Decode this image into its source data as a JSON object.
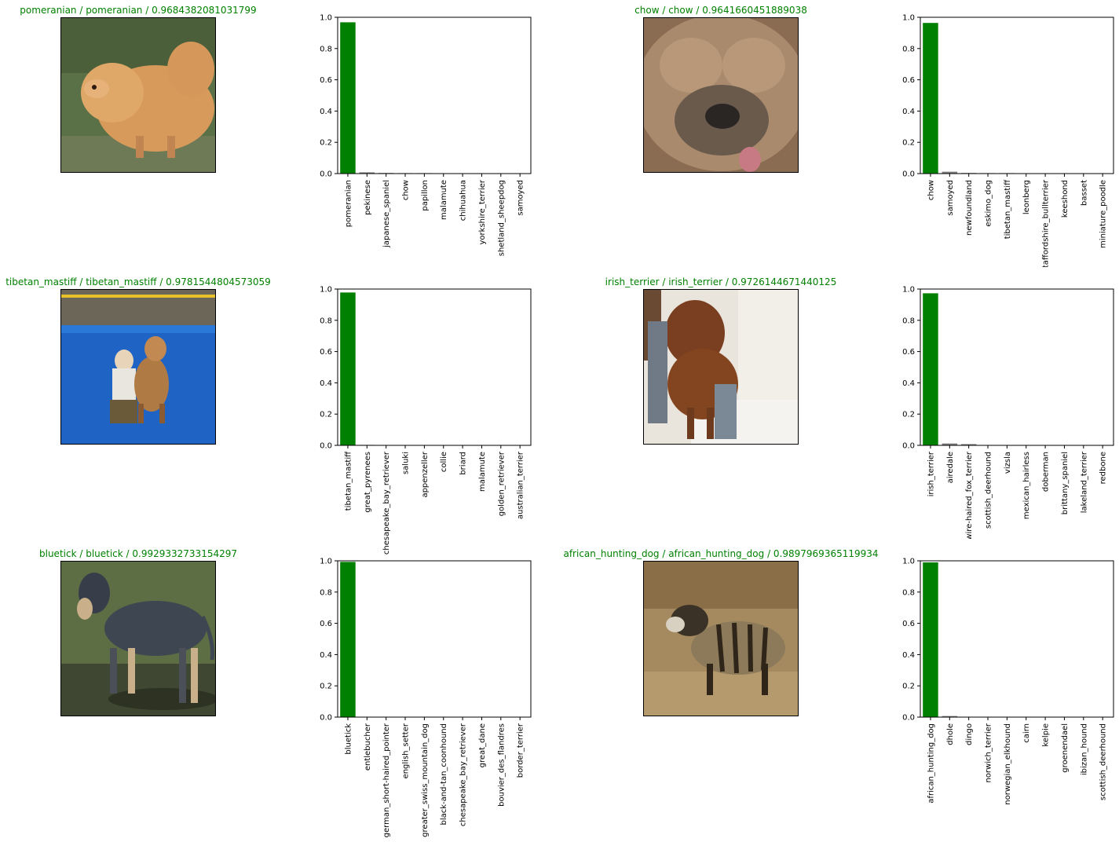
{
  "panels": [
    {
      "title": "pomeranian / pomeranian / 0.9684382081031799",
      "image": {
        "subject": "pomeranian",
        "colors": {
          "bg": "#5a7047",
          "fg": "#d89a5a",
          "shade": "#a9774b"
        }
      },
      "chart_data": {
        "type": "bar",
        "categories": [
          "pomeranian",
          "pekinese",
          "japanese_spaniel",
          "chow",
          "papillon",
          "malamute",
          "chihuahua",
          "yorkshire_terrier",
          "shetland_sheepdog",
          "samoyed"
        ],
        "values": [
          0.968,
          0.008,
          0.004,
          0.003,
          0.003,
          0.002,
          0.002,
          0.002,
          0.001,
          0.001
        ],
        "ylim": [
          0,
          1.0
        ],
        "yticks": [
          "0.0",
          "0.2",
          "0.4",
          "0.6",
          "0.8",
          "1.0"
        ],
        "colors": {
          "top": "#008000",
          "other": "#808080"
        }
      }
    },
    {
      "title": "chow / chow / 0.9641660451889038",
      "image": {
        "subject": "chow",
        "colors": {
          "bg": "#8a6c52",
          "fg": "#a98a6c",
          "shade": "#3a332e"
        }
      },
      "chart_data": {
        "type": "bar",
        "categories": [
          "chow",
          "samoyed",
          "newfoundland",
          "eskimo_dog",
          "tibetan_mastiff",
          "leonberg",
          "staffordshire_bullterrier",
          "keeshond",
          "basset",
          "miniature_poodle"
        ],
        "values": [
          0.964,
          0.012,
          0.004,
          0.003,
          0.003,
          0.002,
          0.002,
          0.002,
          0.002,
          0.002
        ],
        "ylim": [
          0,
          1.0
        ],
        "yticks": [
          "0.0",
          "0.2",
          "0.4",
          "0.6",
          "0.8",
          "1.0"
        ],
        "colors": {
          "top": "#008000",
          "other": "#808080"
        }
      }
    },
    {
      "title": "tibetan_mastiff / tibetan_mastiff / 0.9781544804573059",
      "image": {
        "subject": "tibetan_mastiff",
        "colors": {
          "bg": "#1f63c4",
          "fg": "#b07a45",
          "shade": "#2c2c2c"
        }
      },
      "chart_data": {
        "type": "bar",
        "categories": [
          "tibetan_mastiff",
          "great_pyrenees",
          "chesapeake_bay_retriever",
          "saluki",
          "appenzeller",
          "collie",
          "briard",
          "malamute",
          "golden_retriever",
          "australian_terrier"
        ],
        "values": [
          0.978,
          0.003,
          0.002,
          0.002,
          0.002,
          0.002,
          0.002,
          0.002,
          0.002,
          0.002
        ],
        "ylim": [
          0,
          1.0
        ],
        "yticks": [
          "0.0",
          "0.2",
          "0.4",
          "0.6",
          "0.8",
          "1.0"
        ],
        "colors": {
          "top": "#008000",
          "other": "#808080"
        }
      }
    },
    {
      "title": "irish_terrier / irish_terrier / 0.9726144671440125",
      "image": {
        "subject": "irish_terrier",
        "colors": {
          "bg": "#e9e4dc",
          "fg": "#7a3e20",
          "shade": "#6f7a86"
        }
      },
      "chart_data": {
        "type": "bar",
        "categories": [
          "irish_terrier",
          "airedale",
          "wire-haired_fox_terrier",
          "scottish_deerhound",
          "vizsla",
          "mexican_hairless",
          "doberman",
          "brittany_spaniel",
          "lakeland_terrier",
          "redbone"
        ],
        "values": [
          0.973,
          0.012,
          0.008,
          0.002,
          0.002,
          0.001,
          0.001,
          0.001,
          0.001,
          0.001
        ],
        "ylim": [
          0,
          1.0
        ],
        "yticks": [
          "0.0",
          "0.2",
          "0.4",
          "0.6",
          "0.8",
          "1.0"
        ],
        "colors": {
          "top": "#008000",
          "other": "#808080"
        }
      }
    },
    {
      "title": "bluetick / bluetick / 0.9929332733154297",
      "image": {
        "subject": "bluetick",
        "colors": {
          "bg": "#5d6e44",
          "fg": "#3e4652",
          "shade": "#c9b08a"
        }
      },
      "chart_data": {
        "type": "bar",
        "categories": [
          "bluetick",
          "entlebucher",
          "german_short-haired_pointer",
          "english_setter",
          "greater_swiss_mountain_dog",
          "black-and-tan_coonhound",
          "chesapeake_bay_retriever",
          "great_dane",
          "bouvier_des_flandres",
          "border_terrier"
        ],
        "values": [
          0.993,
          0.002,
          0.001,
          0.001,
          0.001,
          0.001,
          0.001,
          0.001,
          0.001,
          0.001
        ],
        "ylim": [
          0,
          1.0
        ],
        "yticks": [
          "0.0",
          "0.2",
          "0.4",
          "0.6",
          "0.8",
          "1.0"
        ],
        "colors": {
          "top": "#008000",
          "other": "#808080"
        }
      }
    },
    {
      "title": "african_hunting_dog / african_hunting_dog / 0.9897969365119934",
      "image": {
        "subject": "african_hunting_dog",
        "colors": {
          "bg": "#a58a60",
          "fg": "#8c7a5a",
          "shade": "#2f2619"
        }
      },
      "chart_data": {
        "type": "bar",
        "categories": [
          "african_hunting_dog",
          "dhole",
          "dingo",
          "norwich_terrier",
          "norwegian_elkhound",
          "cairn",
          "kelpie",
          "groenendael",
          "ibizan_hound",
          "scottish_deerhound"
        ],
        "values": [
          0.99,
          0.007,
          0.001,
          0.001,
          0.001,
          0.001,
          0.0,
          0.0,
          0.0,
          0.0
        ],
        "ylim": [
          0,
          1.0
        ],
        "yticks": [
          "0.0",
          "0.2",
          "0.4",
          "0.6",
          "0.8",
          "1.0"
        ],
        "colors": {
          "top": "#008000",
          "other": "#808080"
        }
      }
    }
  ]
}
